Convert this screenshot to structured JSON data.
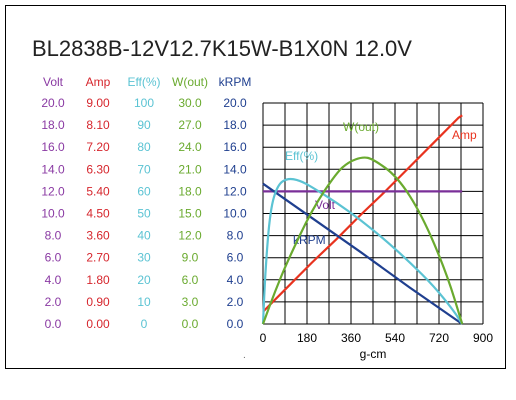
{
  "title": "BL2838B-12V12.7K15W-B1X0N    12.0V",
  "chart_data": {
    "type": "line",
    "xlabel": "g-cm",
    "ylabel": "",
    "xlim": [
      0,
      900
    ],
    "x_ticks": [
      "0",
      "180",
      "360",
      "540",
      "720",
      "900"
    ],
    "grid": true,
    "axis_columns": [
      {
        "name": "Volt",
        "color": "#8a3aa3",
        "ticks": [
          "20.0",
          "18.0",
          "16.0",
          "14.0",
          "12.0",
          "10.0",
          "8.0",
          "6.0",
          "4.0",
          "2.0",
          "0.0"
        ],
        "range": [
          0,
          20
        ]
      },
      {
        "name": "Amp",
        "color": "#d6262d",
        "ticks": [
          "9.00",
          "8.10",
          "7.20",
          "6.30",
          "5.40",
          "4.50",
          "3.60",
          "2.70",
          "1.80",
          "0.90",
          "0.00"
        ],
        "range": [
          0,
          9
        ]
      },
      {
        "name": "Eff(%)",
        "color": "#5bc3d3",
        "ticks": [
          "100",
          "90",
          "80",
          "70",
          "60",
          "50",
          "40",
          "30",
          "20",
          "10",
          "0"
        ],
        "range": [
          0,
          100
        ]
      },
      {
        "name": "W(out)",
        "color": "#6aaa2f",
        "ticks": [
          "30.0",
          "27.0",
          "24.0",
          "21.0",
          "18.0",
          "15.0",
          "12.0",
          "9.0",
          "6.0",
          "3.0",
          "0.0"
        ],
        "range": [
          0,
          30
        ]
      },
      {
        "name": "kRPM",
        "color": "#1f3f8f",
        "ticks": [
          "20.0",
          "18.0",
          "16.0",
          "14.0",
          "12.0",
          "10.0",
          "8.0",
          "6.0",
          "4.0",
          "2.0",
          "0.0"
        ],
        "range": [
          0,
          20
        ]
      }
    ],
    "series": [
      {
        "name": "Amp",
        "color": "#e8331f",
        "axis": "Amp",
        "points": [
          [
            0,
            0.5
          ],
          [
            100,
            1.5
          ],
          [
            200,
            2.5
          ],
          [
            300,
            3.45
          ],
          [
            400,
            4.45
          ],
          [
            500,
            5.4
          ],
          [
            600,
            6.4
          ],
          [
            700,
            7.4
          ],
          [
            800,
            8.4
          ],
          [
            815,
            8.5
          ]
        ]
      },
      {
        "name": "Volt",
        "color": "#7a2f98",
        "axis": "Volt",
        "points": [
          [
            0,
            12.0
          ],
          [
            200,
            12.0
          ],
          [
            400,
            12.0
          ],
          [
            600,
            12.0
          ],
          [
            815,
            12.0
          ]
        ]
      },
      {
        "name": "kRPM",
        "color": "#1f3f8f",
        "axis": "kRPM",
        "points": [
          [
            0,
            12.7
          ],
          [
            200,
            9.6
          ],
          [
            400,
            6.5
          ],
          [
            600,
            3.3
          ],
          [
            815,
            0.0
          ]
        ]
      },
      {
        "name": "Eff(%)",
        "color": "#5bc3d3",
        "axis": "Eff(%)",
        "points": [
          [
            0,
            0
          ],
          [
            10,
            25
          ],
          [
            30,
            52
          ],
          [
            60,
            63
          ],
          [
            100,
            66
          ],
          [
            150,
            65
          ],
          [
            200,
            62
          ],
          [
            300,
            55
          ],
          [
            400,
            47
          ],
          [
            500,
            38
          ],
          [
            600,
            28
          ],
          [
            700,
            17
          ],
          [
            780,
            6
          ],
          [
            815,
            0
          ]
        ]
      },
      {
        "name": "W(out)",
        "color": "#6aaa2f",
        "axis": "W(out)",
        "points": [
          [
            0,
            0
          ],
          [
            50,
            4.5
          ],
          [
            100,
            8.5
          ],
          [
            200,
            15.5
          ],
          [
            300,
            20.5
          ],
          [
            350,
            22.0
          ],
          [
            408,
            22.7
          ],
          [
            450,
            22.4
          ],
          [
            550,
            20.0
          ],
          [
            650,
            14.8
          ],
          [
            750,
            7.0
          ],
          [
            815,
            0
          ]
        ]
      }
    ],
    "series_label_text": {
      "Amp": "Amp",
      "Volt": "Volt",
      "kRPM": "kRPM",
      "Eff(%)": "Eff(%)",
      "W(out)": "W(out)"
    }
  }
}
